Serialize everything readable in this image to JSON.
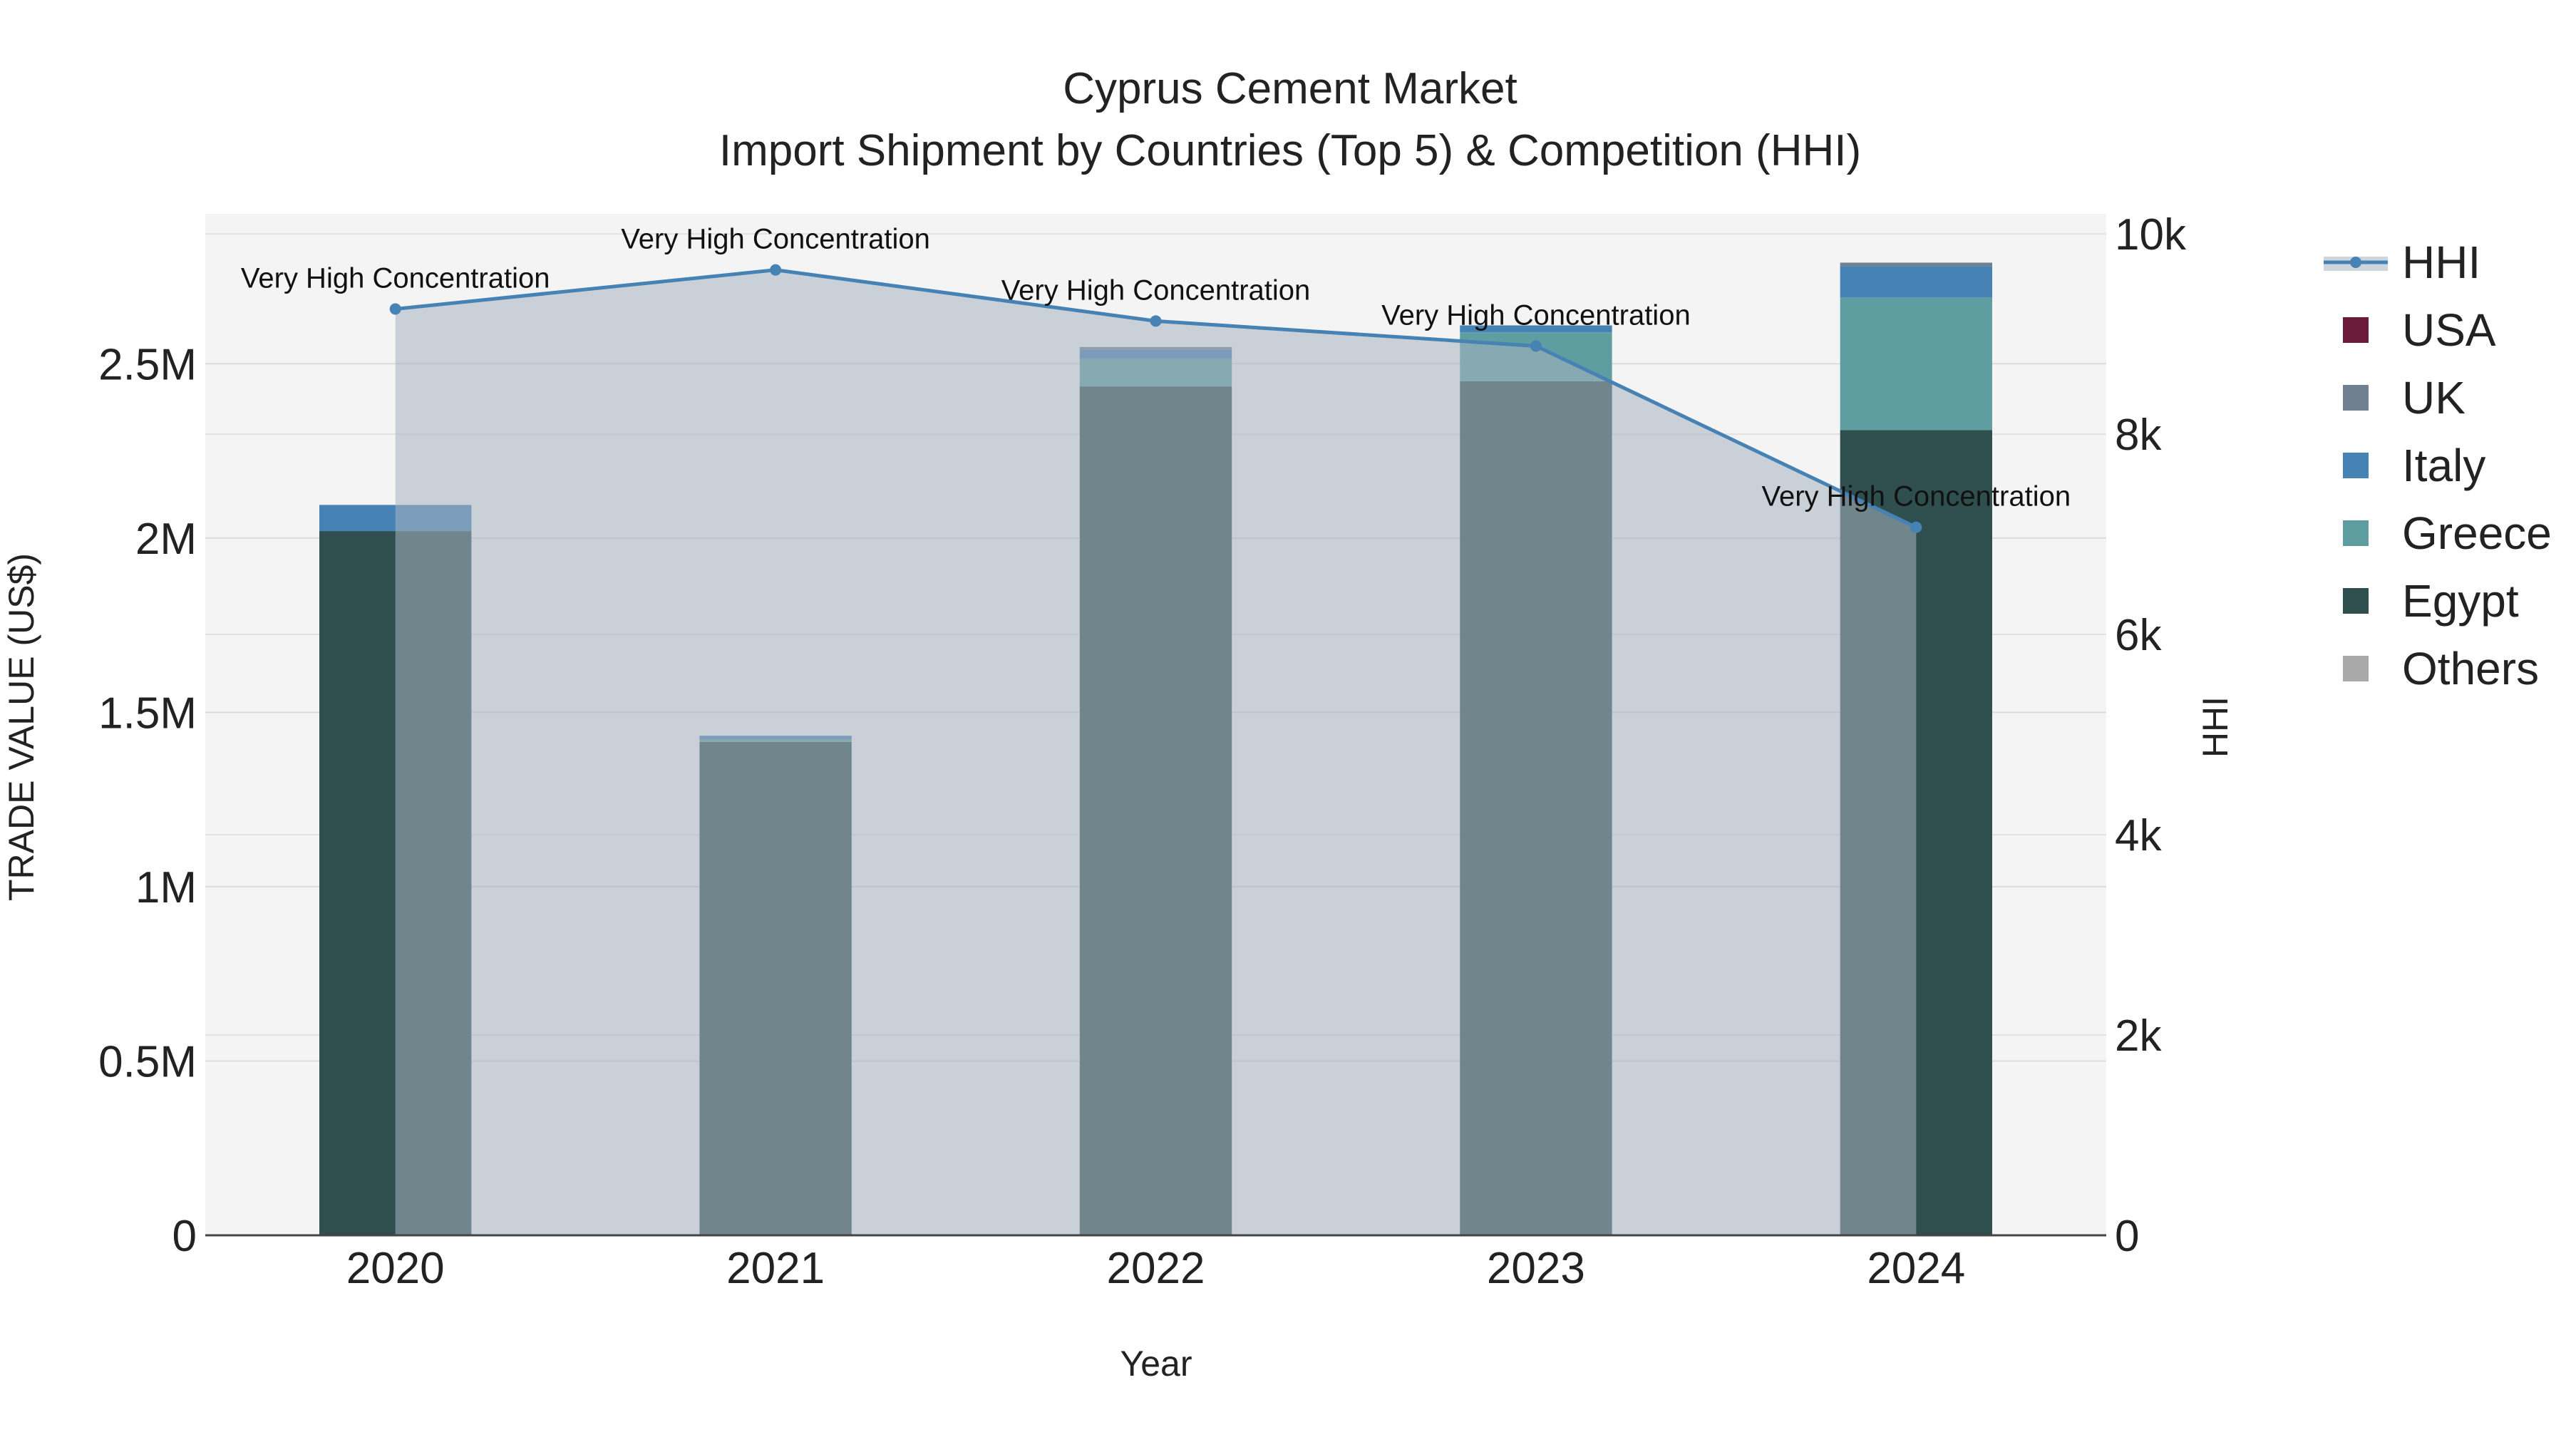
{
  "colors": {
    "usa": "#6b1a3a",
    "uk": "#708090",
    "italy": "#4682b4",
    "greece": "#5f9ea0",
    "egypt": "#2f4f4f",
    "others": "#a9a9a9",
    "hhi": "#4682b4",
    "plot_bg": "#f4f4f4"
  },
  "chart_data": {
    "type": "bar",
    "title_line1": "Cyprus Cement Market",
    "title_line2": "Import Shipment by Countries (Top 5) & Competition (HHI)",
    "xlabel": "Year",
    "ylabel": "TRADE VALUE (US$)",
    "y2label": "HHI",
    "categories": [
      "2020",
      "2021",
      "2022",
      "2023",
      "2024"
    ],
    "ylim": [
      0,
      2930000
    ],
    "y2lim": [
      0,
      10200
    ],
    "yticks": [
      0,
      500000,
      1000000,
      1500000,
      2000000,
      2500000
    ],
    "ytick_labels": [
      "0",
      "0.5M",
      "1M",
      "1.5M",
      "2M",
      "2.5M"
    ],
    "y2ticks": [
      0,
      2000,
      4000,
      6000,
      8000,
      10000
    ],
    "y2tick_labels": [
      "0",
      "2k",
      "4k",
      "6k",
      "8k",
      "10k"
    ],
    "stack_order": [
      "Egypt",
      "Greece",
      "Italy",
      "UK",
      "USA",
      "Others"
    ],
    "series": [
      {
        "name": "Egypt",
        "key": "egypt",
        "values": [
          2020000,
          1415000,
          2435000,
          2450000,
          2310000
        ]
      },
      {
        "name": "Greece",
        "key": "greece",
        "values": [
          0,
          8000,
          80000,
          140000,
          380000
        ]
      },
      {
        "name": "Italy",
        "key": "italy",
        "values": [
          75000,
          10000,
          25000,
          20000,
          90000
        ]
      },
      {
        "name": "UK",
        "key": "uk",
        "values": [
          0,
          0,
          8000,
          0,
          10000
        ]
      },
      {
        "name": "USA",
        "key": "usa",
        "values": [
          0,
          0,
          0,
          0,
          0
        ]
      },
      {
        "name": "Others",
        "key": "others",
        "values": [
          0,
          0,
          0,
          0,
          0
        ]
      }
    ],
    "hhi": {
      "name": "HHI",
      "values": [
        9250,
        9640,
        9130,
        8880,
        7070
      ],
      "labels": [
        "Very High Concentration",
        "Very High Concentration",
        "Very High Concentration",
        "Very High Concentration",
        "Very High Concentration"
      ]
    },
    "legend": [
      "HHI",
      "USA",
      "UK",
      "Italy",
      "Greece",
      "Egypt",
      "Others"
    ],
    "legend_position": "top-right, outside plot"
  }
}
